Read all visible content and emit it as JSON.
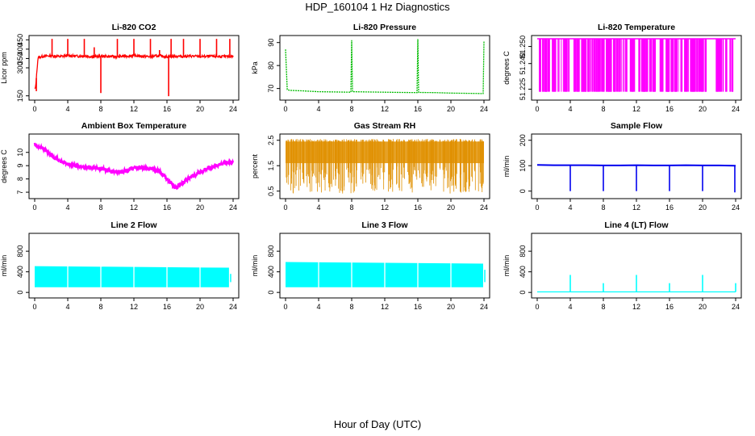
{
  "title": "HDP_160104  1 Hz Diagnostics",
  "x_axis_label": "Hour of Day (UTC)",
  "chart_data": [
    {
      "type": "line",
      "title": "Li-820 CO2",
      "ylabel": "Licor ppm",
      "color": "#ff0000",
      "xlim": [
        0,
        24
      ],
      "ylim": [
        140,
        460
      ],
      "xticks": [
        "0",
        "4",
        "8",
        "12",
        "16",
        "20",
        "24"
      ],
      "yticks": [
        "150",
        "300",
        "350",
        "400",
        "450"
      ],
      "ytick_values": [
        150,
        300,
        350,
        400,
        450
      ],
      "series": [
        {
          "x": [
            0.1,
            0.4,
            1,
            2,
            3,
            4,
            5,
            6,
            7,
            8,
            9,
            10,
            11,
            12,
            13,
            14,
            15,
            16,
            17,
            18,
            19,
            20,
            21,
            22,
            23,
            24
          ],
          "y": [
            190,
            355,
            362,
            365,
            360,
            366,
            362,
            364,
            360,
            362,
            361,
            360,
            363,
            365,
            362,
            360,
            364,
            360,
            362,
            361,
            363,
            360,
            362,
            361,
            360,
            362
          ]
        }
      ],
      "spikes": [
        {
          "x": 0.2,
          "y": 175
        },
        {
          "x": 2.1,
          "y": 455
        },
        {
          "x": 4.0,
          "y": 455
        },
        {
          "x": 6.0,
          "y": 455
        },
        {
          "x": 7.2,
          "y": 410
        },
        {
          "x": 8.0,
          "y": 165
        },
        {
          "x": 10.0,
          "y": 455
        },
        {
          "x": 12.0,
          "y": 455
        },
        {
          "x": 14.0,
          "y": 455
        },
        {
          "x": 15.1,
          "y": 395
        },
        {
          "x": 16.2,
          "y": 148
        },
        {
          "x": 16.5,
          "y": 455
        },
        {
          "x": 18.0,
          "y": 455
        },
        {
          "x": 20.0,
          "y": 455
        },
        {
          "x": 22.0,
          "y": 455
        },
        {
          "x": 23.6,
          "y": 455
        }
      ]
    },
    {
      "type": "line",
      "title": "Li-820 Pressure",
      "ylabel": "kPa",
      "color": "#00bb00",
      "xlim": [
        0,
        24
      ],
      "ylim": [
        66,
        92
      ],
      "xticks": [
        "0",
        "4",
        "8",
        "12",
        "16",
        "20",
        "24"
      ],
      "yticks": [
        "70",
        "80",
        "90"
      ],
      "ytick_values": [
        70,
        80,
        90
      ],
      "series": [
        {
          "x": [
            0,
            0.2,
            0.5,
            2,
            4,
            6,
            7.9,
            8,
            8.1,
            10,
            12,
            14,
            15.9,
            16,
            16.1,
            18,
            20,
            22,
            23.9,
            24
          ],
          "y": [
            87,
            69.5,
            69.2,
            69,
            68.6,
            68.5,
            68.4,
            91,
            68.6,
            68.5,
            68.4,
            68.3,
            68.2,
            91.5,
            68.3,
            68.2,
            68,
            67.9,
            67.8,
            90.5
          ]
        }
      ]
    },
    {
      "type": "line",
      "title": "Li-820 Temperature",
      "ylabel": "degrees C",
      "color": "#ff00ff",
      "xlim": [
        0,
        24
      ],
      "ylim": [
        51.22,
        51.255
      ],
      "xticks": [
        "0",
        "4",
        "8",
        "12",
        "16",
        "20",
        "24"
      ],
      "yticks": [
        "51.225",
        "51.240",
        "51.250"
      ],
      "ytick_values": [
        51.225,
        51.24,
        51.25
      ],
      "band": {
        "low": 51.2235,
        "high": 51.2545
      }
    },
    {
      "type": "line",
      "title": "Ambient Box Temperature",
      "ylabel": "degrees C",
      "color": "#ff00ff",
      "xlim": [
        0,
        24
      ],
      "ylim": [
        6.7,
        11.2
      ],
      "xticks": [
        "0",
        "4",
        "8",
        "12",
        "16",
        "20",
        "24"
      ],
      "yticks": [
        "7",
        "8",
        "9",
        "10"
      ],
      "ytick_values": [
        7,
        8,
        9,
        10
      ],
      "series": [
        {
          "x": [
            0,
            1,
            2,
            3,
            4,
            5,
            6,
            7,
            8,
            9,
            10,
            11,
            12,
            13,
            14,
            15,
            16,
            17,
            18,
            19,
            20,
            21,
            22,
            23,
            24
          ],
          "y": [
            10.6,
            10.3,
            9.8,
            9.4,
            9.1,
            9.0,
            8.9,
            8.85,
            8.8,
            8.6,
            8.55,
            8.6,
            8.8,
            8.85,
            8.8,
            8.6,
            8.0,
            7.3,
            7.8,
            8.2,
            8.5,
            8.8,
            9.0,
            9.2,
            9.3
          ]
        }
      ]
    },
    {
      "type": "area",
      "title": "Gas Stream RH",
      "ylabel": "percent",
      "color": "#e09000",
      "xlim": [
        0,
        24
      ],
      "ylim": [
        0.3,
        2.65
      ],
      "xticks": [
        "0",
        "4",
        "8",
        "12",
        "16",
        "20",
        "24"
      ],
      "yticks": [
        "0.5",
        "1.5",
        "2.5"
      ],
      "ytick_values": [
        0.5,
        1.5,
        2.5
      ],
      "band": {
        "low": 1.6,
        "high": 2.45,
        "min": 0.4,
        "max": 2.55
      }
    },
    {
      "type": "line",
      "title": "Sample Flow",
      "ylabel": "ml/min",
      "color": "#0000ee",
      "xlim": [
        0,
        24
      ],
      "ylim": [
        -20,
        215
      ],
      "xticks": [
        "0",
        "4",
        "8",
        "12",
        "16",
        "20",
        "24"
      ],
      "yticks": [
        "0",
        "100",
        "200"
      ],
      "ytick_values": [
        0,
        100,
        200
      ],
      "series": [
        {
          "x": [
            0,
            2,
            4,
            6,
            8,
            10,
            12,
            14,
            16,
            18,
            20,
            22,
            24
          ],
          "y": [
            103,
            102,
            102,
            102,
            101,
            101,
            102,
            101,
            101,
            102,
            101,
            101,
            100
          ]
        }
      ],
      "spikes": [
        {
          "x": 4,
          "y": 0
        },
        {
          "x": 8,
          "y": 0
        },
        {
          "x": 12,
          "y": 0
        },
        {
          "x": 16,
          "y": 0
        },
        {
          "x": 20,
          "y": 0
        },
        {
          "x": 23.9,
          "y": -5
        }
      ]
    },
    {
      "type": "area",
      "title": "Line 2 Flow",
      "ylabel": "ml/min",
      "color": "#00ffff",
      "xlim": [
        0,
        24
      ],
      "ylim": [
        -60,
        1100
      ],
      "xticks": [
        "0",
        "4",
        "8",
        "12",
        "16",
        "20",
        "24"
      ],
      "yticks": [
        "0",
        "400",
        "800"
      ],
      "ytick_values": [
        0,
        400,
        800
      ],
      "band": {
        "low": 100,
        "high_start": 510,
        "high_end": 480,
        "x_end": 23.5
      },
      "gaps": [
        4,
        8,
        12,
        16,
        20
      ]
    },
    {
      "type": "area",
      "title": "Line 3 Flow",
      "ylabel": "ml/min",
      "color": "#00ffff",
      "xlim": [
        0,
        24
      ],
      "ylim": [
        -60,
        1100
      ],
      "xticks": [
        "0",
        "4",
        "8",
        "12",
        "16",
        "20",
        "24"
      ],
      "yticks": [
        "0",
        "400",
        "800"
      ],
      "ytick_values": [
        0,
        400,
        800
      ],
      "band": {
        "low": 100,
        "high_start": 590,
        "high_end": 560,
        "x_end": 23.9
      },
      "gaps": [
        4,
        8,
        12,
        16,
        20
      ]
    },
    {
      "type": "line",
      "title": "Line 4 (LT) Flow",
      "ylabel": "ml/min",
      "color": "#00ffff",
      "xlim": [
        0,
        24
      ],
      "ylim": [
        -60,
        1100
      ],
      "xticks": [
        "0",
        "4",
        "8",
        "12",
        "16",
        "20",
        "24"
      ],
      "yticks": [
        "0",
        "400",
        "800"
      ],
      "ytick_values": [
        0,
        400,
        800
      ],
      "series": [
        {
          "x": [
            0,
            24
          ],
          "y": [
            10,
            10
          ]
        }
      ],
      "spikes": [
        {
          "x": 4,
          "y": 340
        },
        {
          "x": 8,
          "y": 180
        },
        {
          "x": 12,
          "y": 340
        },
        {
          "x": 16,
          "y": 180
        },
        {
          "x": 20,
          "y": 340
        },
        {
          "x": 24,
          "y": 180
        }
      ]
    }
  ]
}
